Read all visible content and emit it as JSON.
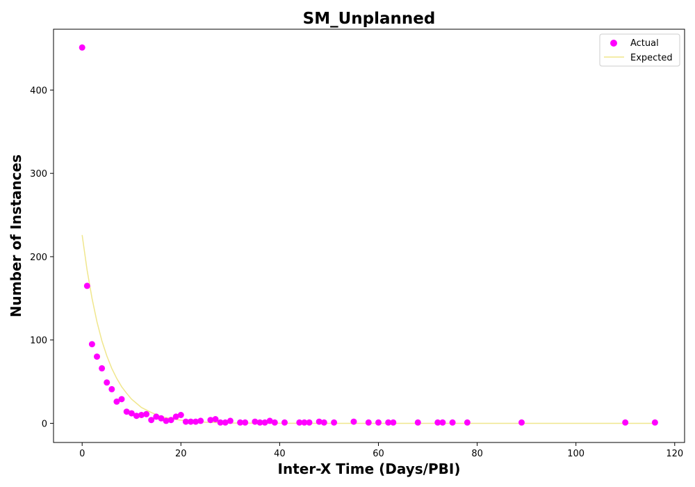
{
  "chart_data": {
    "type": "scatter",
    "title": "SM_Unplanned",
    "xlabel": "Inter-X Time (Days/PBI)",
    "ylabel": "Number of Instances",
    "xlim": [
      -5.8,
      122
    ],
    "ylim": [
      -23,
      473
    ],
    "xticks": [
      0,
      20,
      40,
      60,
      80,
      100,
      120
    ],
    "yticks": [
      0,
      100,
      200,
      300,
      400
    ],
    "grid": false,
    "legend_position": "top-right",
    "colors": {
      "actual": "#ff00ff",
      "expected": "#f0e68c"
    },
    "series": [
      {
        "name": "Actual",
        "kind": "scatter",
        "x": [
          0,
          1,
          2,
          3,
          4,
          5,
          6,
          7,
          8,
          9,
          10,
          11,
          12,
          13,
          14,
          15,
          16,
          17,
          18,
          19,
          20,
          21,
          22,
          23,
          24,
          26,
          27,
          28,
          29,
          30,
          32,
          33,
          35,
          36,
          37,
          38,
          39,
          41,
          44,
          45,
          46,
          48,
          49,
          51,
          55,
          58,
          60,
          62,
          63,
          68,
          72,
          73,
          75,
          78,
          89,
          110,
          116
        ],
        "y": [
          451,
          165,
          95,
          80,
          66,
          49,
          41,
          26,
          29,
          14,
          12,
          9,
          10,
          11,
          4,
          8,
          6,
          3,
          4,
          8,
          10,
          2,
          2,
          2,
          3,
          4,
          5,
          1,
          1,
          3,
          1,
          1,
          2,
          1,
          1,
          3,
          1,
          1,
          1,
          1,
          1,
          2,
          1,
          1,
          2,
          1,
          1,
          1,
          1,
          1,
          1,
          1,
          1,
          1,
          1,
          1,
          1
        ]
      },
      {
        "name": "Expected",
        "kind": "line",
        "x": [
          0,
          1,
          2,
          3,
          4,
          5,
          6,
          7,
          8,
          9,
          10,
          12,
          14,
          16,
          18,
          20,
          25,
          30,
          35,
          40,
          50,
          60,
          70,
          80,
          90,
          100,
          110,
          116
        ],
        "y": [
          226,
          184,
          150,
          122,
          99,
          81,
          66,
          54,
          44,
          36,
          29,
          19,
          13,
          8,
          5.6,
          3.7,
          1.3,
          0.4,
          0.15,
          0.05,
          0,
          0,
          0,
          0,
          0,
          0,
          0,
          0
        ]
      }
    ]
  }
}
